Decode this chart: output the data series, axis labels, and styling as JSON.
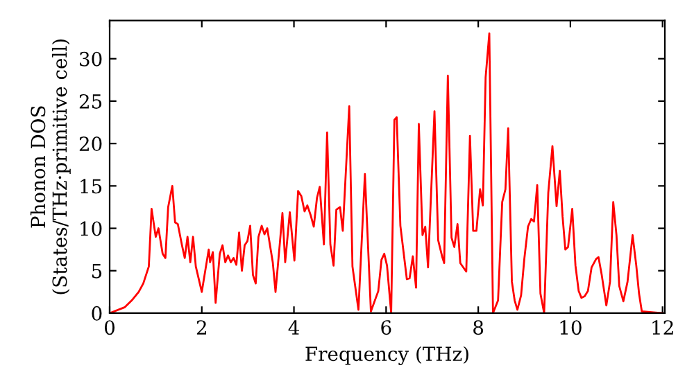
{
  "chart_data": {
    "type": "line",
    "xlabel": "Frequency (THz)",
    "ylabel": "Phonon DOS\n(States/THz·primitive cell)",
    "xlim": [
      0,
      12.05
    ],
    "ylim": [
      0,
      34.5
    ],
    "xticks": [
      0,
      2,
      4,
      6,
      8,
      10,
      12
    ],
    "yticks": [
      0,
      5,
      10,
      15,
      20,
      25,
      30
    ],
    "grid": false,
    "legend": false,
    "series": [
      {
        "color": "#ff0000",
        "x": [
          0,
          0.33,
          0.48,
          0.63,
          0.73,
          0.85,
          0.91,
          1.0,
          1.06,
          1.15,
          1.21,
          1.27,
          1.36,
          1.42,
          1.48,
          1.57,
          1.63,
          1.69,
          1.75,
          1.81,
          1.87,
          2.0,
          2.09,
          2.15,
          2.18,
          2.24,
          2.3,
          2.39,
          2.45,
          2.51,
          2.57,
          2.63,
          2.69,
          2.75,
          2.81,
          2.87,
          2.93,
          2.99,
          3.05,
          3.11,
          3.17,
          3.23,
          3.3,
          3.36,
          3.42,
          3.54,
          3.6,
          3.69,
          3.75,
          3.81,
          3.91,
          4.01,
          4.09,
          4.16,
          4.23,
          4.29,
          4.36,
          4.43,
          4.5,
          4.56,
          4.65,
          4.72,
          4.79,
          4.86,
          4.92,
          5.0,
          5.06,
          5.2,
          5.27,
          5.4,
          5.54,
          5.67,
          5.83,
          5.9,
          5.96,
          6.02,
          6.11,
          6.18,
          6.23,
          6.31,
          6.45,
          6.51,
          6.58,
          6.65,
          6.71,
          6.79,
          6.85,
          6.91,
          7.05,
          7.13,
          7.22,
          7.26,
          7.34,
          7.42,
          7.48,
          7.55,
          7.61,
          7.74,
          7.82,
          7.89,
          7.96,
          8.04,
          8.1,
          8.16,
          8.24,
          8.32,
          8.43,
          8.52,
          8.59,
          8.65,
          8.73,
          8.79,
          8.85,
          8.93,
          9.0,
          9.08,
          9.15,
          9.21,
          9.28,
          9.35,
          9.43,
          9.52,
          9.61,
          9.7,
          9.77,
          9.83,
          9.89,
          9.95,
          10.04,
          10.11,
          10.18,
          10.24,
          10.31,
          10.38,
          10.46,
          10.56,
          10.61,
          10.68,
          10.78,
          10.86,
          10.93,
          11.0,
          11.06,
          11.15,
          11.24,
          11.35,
          11.43,
          11.49,
          11.55,
          12.0
        ],
        "values": [
          0,
          0.7,
          1.5,
          2.5,
          3.5,
          5.5,
          12.3,
          9,
          10,
          7,
          6.5,
          12.5,
          15,
          10.7,
          10.5,
          8,
          6.5,
          9,
          6,
          9,
          5.5,
          2.5,
          5.5,
          7.5,
          6,
          7.2,
          1.2,
          7,
          8,
          6,
          6.8,
          6,
          6.5,
          5.7,
          9.5,
          5,
          8,
          8.5,
          10.3,
          4.5,
          3.5,
          9,
          10.3,
          9.3,
          10,
          6,
          2.5,
          8,
          11.8,
          6,
          11.9,
          6.2,
          14.4,
          13.8,
          12,
          12.7,
          11.6,
          10.2,
          13.6,
          14.9,
          8.1,
          21.3,
          8.1,
          5.6,
          12.2,
          12.5,
          9.7,
          24.4,
          5.5,
          0.4,
          16.4,
          0.2,
          2.6,
          6.3,
          7,
          5.6,
          0,
          22.8,
          23.1,
          10.3,
          4,
          4.1,
          6.7,
          3,
          22.3,
          9.2,
          10.2,
          5.4,
          23.8,
          8.6,
          6.6,
          5.9,
          28,
          8.9,
          7.8,
          10.5,
          5.9,
          4.9,
          20.9,
          9.7,
          9.7,
          14.6,
          12.7,
          27.8,
          33,
          0,
          1.5,
          13.1,
          14.6,
          21.8,
          3.7,
          1.5,
          0.4,
          2.1,
          6.4,
          10.2,
          11.1,
          10.8,
          15.1,
          2.3,
          0,
          14.2,
          19.7,
          12.6,
          16.8,
          11.4,
          7.5,
          7.8,
          12.3,
          5.6,
          2.6,
          1.8,
          2,
          2.6,
          5.4,
          6.4,
          6.6,
          4.5,
          0.9,
          3.7,
          13.1,
          9.2,
          3.2,
          1.4,
          3.7,
          9.2,
          5.6,
          2.3,
          0.2,
          0
        ]
      }
    ]
  }
}
